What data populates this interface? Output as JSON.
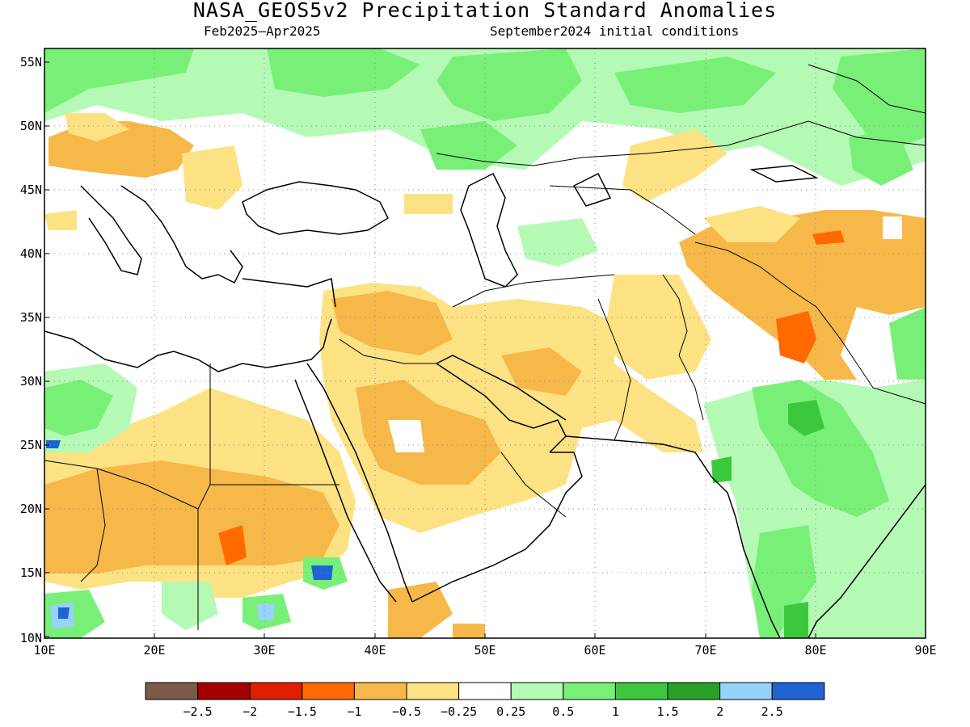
{
  "title": "NASA_GEOS5v2 Precipitation Standard Anomalies",
  "period": "Feb2025–Apr2025",
  "initial_conditions": "September2024 initial conditions",
  "axes": {
    "lat_ticks": [
      "55N",
      "50N",
      "45N",
      "40N",
      "35N",
      "30N",
      "25N",
      "20N",
      "15N",
      "10N"
    ],
    "lon_ticks": [
      "10E",
      "20E",
      "30E",
      "40E",
      "50E",
      "60E",
      "70E",
      "80E",
      "90E"
    ],
    "lon_range": [
      10,
      90
    ],
    "lat_range": [
      10,
      56.5
    ]
  },
  "colorbar": {
    "labels": [
      "−2.5",
      "−2",
      "−1.5",
      "−1",
      "−0.5",
      "−0.25",
      "0.25",
      "0.5",
      "1",
      "1.5",
      "2",
      "2.5"
    ],
    "colors": [
      "#7b5a4a",
      "#a50000",
      "#e01e00",
      "#ff6a00",
      "#f7b84a",
      "#fde283",
      "#ffffff",
      "#b4fab4",
      "#78f078",
      "#3cc83c",
      "#28a028",
      "#96d2fa",
      "#1e64d2"
    ]
  },
  "anomaly_colors": {
    "dry_moderate": "#f7b84a",
    "dry_light": "#fde283",
    "dry_strong": "#ff6a00",
    "wet_light": "#b4fab4",
    "wet_moderate": "#78f078",
    "wet_strong": "#3cc83c",
    "wet_very": "#28a028",
    "wet_extreme": "#96d2fa",
    "wet_max": "#1e64d2"
  }
}
